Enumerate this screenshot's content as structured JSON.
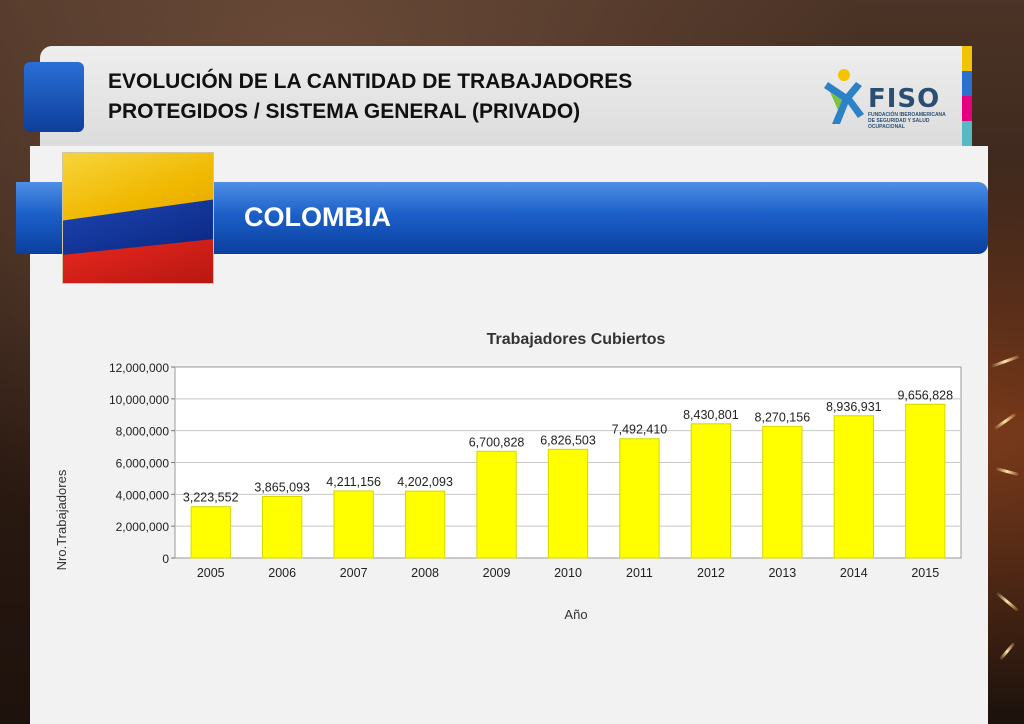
{
  "header": {
    "title_line1": "EVOLUCIÓN DE LA CANTIDAD DE TRABAJADORES",
    "title_line2": "PROTEGIDOS / SISTEMA GENERAL (PRIVADO)"
  },
  "logo": {
    "name": "FISO",
    "subtitle": "FUNDACIÓN IBEROAMERICANA DE SEGURIDAD Y SALUD OCUPACIONAL",
    "icon": "fiso-person-icon"
  },
  "section": {
    "country": "COLOMBIA",
    "flag_icon": "colombia-flag-icon"
  },
  "colors": {
    "bar": "#ffff00",
    "accent": "#1c5fc8",
    "panel": "#f2f2f2"
  },
  "chart_data": {
    "type": "bar",
    "title": "Trabajadores Cubiertos",
    "xlabel": "Año",
    "ylabel": "Nro.Trabajadores",
    "ylim": [
      0,
      12000000
    ],
    "yticks": [
      0,
      2000000,
      4000000,
      6000000,
      8000000,
      10000000,
      12000000
    ],
    "ytick_labels": [
      "0",
      "2,000,000",
      "4,000,000",
      "6,000,000",
      "8,000,000",
      "10,000,000",
      "12,000,000"
    ],
    "categories": [
      "2005",
      "2006",
      "2007",
      "2008",
      "2009",
      "2010",
      "2011",
      "2012",
      "2013",
      "2014",
      "2015"
    ],
    "values": [
      3223552,
      3865093,
      4211156,
      4202093,
      6700828,
      6826503,
      7492410,
      8430801,
      8270156,
      8936931,
      9656828
    ],
    "value_labels": [
      "3,223,552",
      "3,865,093",
      "4,211,156",
      "4,202,093",
      "6,700,828",
      "6,826,503",
      "7,492,410",
      "8,430,801",
      "8,270,156",
      "8,936,931",
      "9,656,828"
    ],
    "grid": true,
    "legend": "none"
  }
}
